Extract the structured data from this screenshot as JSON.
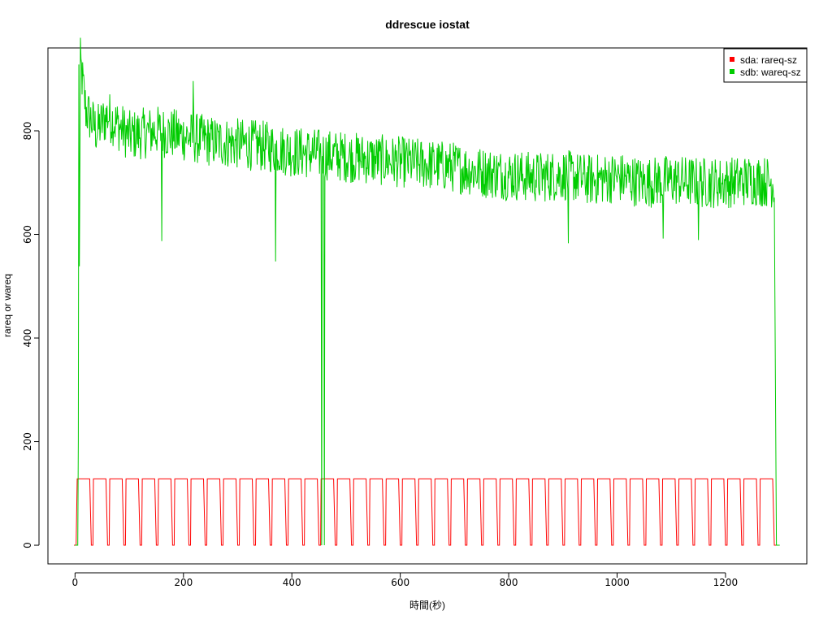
{
  "chart_data": {
    "type": "line",
    "title": "ddrescue iostat",
    "xlabel": "時間(秒)",
    "ylabel": "rareq or wareq",
    "xlim": [
      -50,
      1350
    ],
    "ylim": [
      -36,
      960
    ],
    "x_ticks": [
      0,
      200,
      400,
      600,
      800,
      1000,
      1200
    ],
    "y_ticks": [
      0,
      200,
      400,
      600,
      800
    ],
    "grid": false,
    "legend_position": "top-right",
    "series": [
      {
        "name": "sda: rareq-sz",
        "color": "#ff0000",
        "pattern": "square-wave",
        "high": 128,
        "low": 0,
        "period": 30,
        "x_start": 0,
        "x_end": 1300
      },
      {
        "name": "sdb: wareq-sz",
        "color": "#00cc00",
        "pattern": "noisy-decreasing",
        "x": [
          0,
          5,
          10,
          20,
          40,
          60,
          100,
          150,
          200,
          250,
          300,
          350,
          400,
          450,
          500,
          550,
          600,
          650,
          700,
          750,
          800,
          850,
          900,
          950,
          1000,
          1050,
          1100,
          1150,
          1200,
          1250,
          1290,
          1295,
          1300
        ],
        "values": [
          0,
          0,
          930,
          840,
          800,
          830,
          790,
          800,
          790,
          780,
          775,
          770,
          760,
          755,
          750,
          745,
          740,
          735,
          730,
          720,
          715,
          710,
          715,
          705,
          710,
          700,
          705,
          700,
          700,
          705,
          700,
          0,
          0
        ],
        "spikes": [
          {
            "x": 7,
            "y": 928
          },
          {
            "x": 160,
            "y": 587
          },
          {
            "x": 218,
            "y": 896
          },
          {
            "x": 370,
            "y": 548
          },
          {
            "x": 455,
            "y": 0
          },
          {
            "x": 460,
            "y": 0
          },
          {
            "x": 910,
            "y": 583
          },
          {
            "x": 1085,
            "y": 592
          },
          {
            "x": 1150,
            "y": 589
          }
        ]
      }
    ]
  }
}
